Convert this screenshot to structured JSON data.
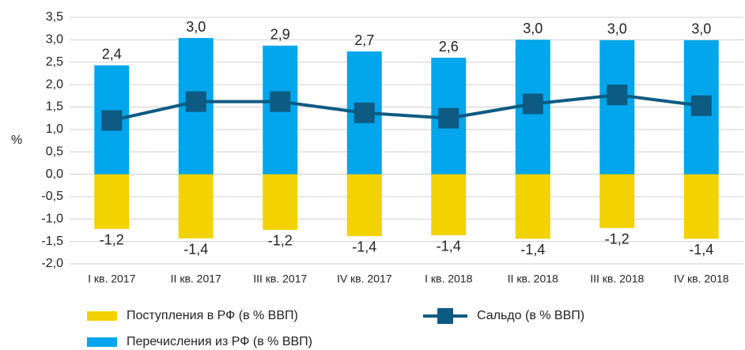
{
  "chart_data": {
    "type": "bar_line",
    "y_label": "%",
    "categories": [
      "I кв. 2017",
      "II кв. 2017",
      "III кв. 2017",
      "IV кв. 2017",
      "I кв. 2018",
      "II кв. 2018",
      "III кв. 2018",
      "IV кв. 2018"
    ],
    "series": [
      {
        "name": "Поступления в РФ (в % ВВП)",
        "type": "bar",
        "color": "#f2d200",
        "values": [
          -1.22,
          -1.43,
          -1.24,
          -1.38,
          -1.36,
          -1.44,
          -1.2,
          -1.44
        ],
        "value_labels": [
          "-1,2",
          "-1,4",
          "-1,2",
          "-1,4",
          "-1,4",
          "-1,4",
          "-1,2",
          "-1,4"
        ]
      },
      {
        "name": "Сальдо (в % ВВП)",
        "type": "line",
        "color": "#0d5a82",
        "values": [
          1.2,
          1.62,
          1.62,
          1.37,
          1.25,
          1.57,
          1.77,
          1.53
        ]
      },
      {
        "name": "Перечисления из РФ (в % ВВП)",
        "type": "bar",
        "color": "#00a6eb",
        "values": [
          2.43,
          3.04,
          2.87,
          2.74,
          2.6,
          3.0,
          2.99,
          2.99
        ],
        "value_labels": [
          "2,4",
          "3,0",
          "2,9",
          "2,7",
          "2,6",
          "3,0",
          "3,0",
          "3,0"
        ]
      }
    ],
    "ylim": [
      -2.0,
      3.5
    ],
    "yticks": [
      {
        "value": -2.0,
        "label": "-2,0"
      },
      {
        "value": -1.5,
        "label": "-1,5"
      },
      {
        "value": -1.0,
        "label": "-1,0"
      },
      {
        "value": -0.5,
        "label": "-0,5"
      },
      {
        "value": 0,
        "label": "0,0"
      },
      {
        "value": 0.5,
        "label": "0,5"
      },
      {
        "value": 1.0,
        "label": "1,0"
      },
      {
        "value": 1.5,
        "label": "1,5"
      },
      {
        "value": 2.0,
        "label": "2,0"
      },
      {
        "value": 2.5,
        "label": "2,5"
      },
      {
        "value": 3.0,
        "label": "3,0"
      },
      {
        "value": 3.5,
        "label": "3,5"
      }
    ],
    "grid": true
  }
}
